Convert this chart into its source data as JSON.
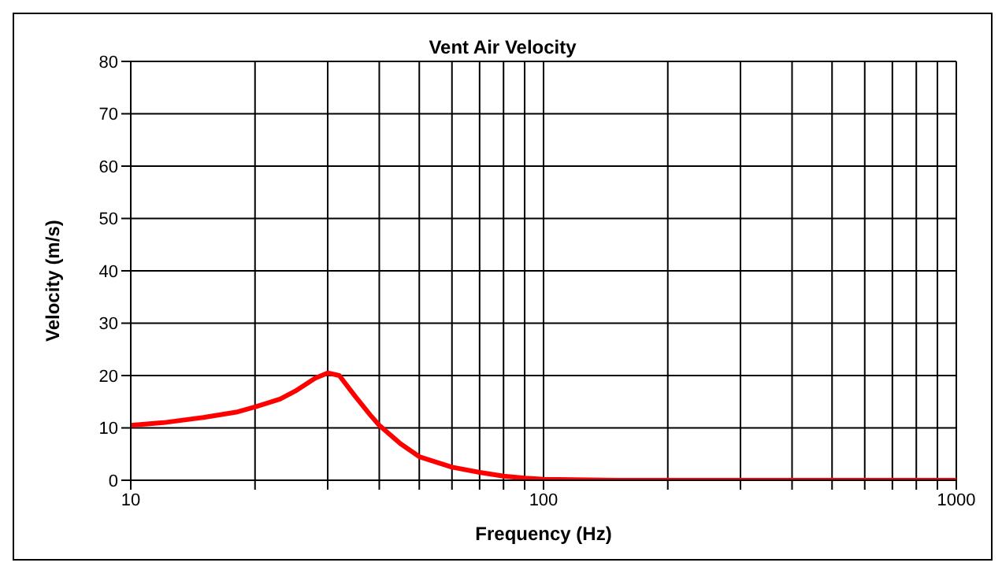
{
  "chart_data": {
    "type": "line",
    "title": "Vent Air Velocity",
    "xlabel": "Frequency (Hz)",
    "ylabel": "Velocity (m/s)",
    "log": "x",
    "x": [
      10,
      12,
      15,
      18,
      20,
      23,
      25,
      28,
      30,
      32,
      35,
      38,
      40,
      45,
      50,
      60,
      70,
      80,
      90,
      100,
      150,
      200,
      500,
      1000
    ],
    "series": [
      {
        "color": "#ff0000",
        "values": [
          10.5,
          11,
          12,
          13,
          14,
          15.5,
          17,
          19.5,
          20.5,
          20,
          16,
          12.5,
          10.5,
          7,
          4.5,
          2.5,
          1.5,
          0.8,
          0.4,
          0.2,
          0,
          0,
          0,
          0
        ]
      }
    ],
    "xlim": [
      10,
      1000
    ],
    "ylim": [
      0,
      80
    ],
    "xticks": [
      10,
      {
        "value": 20,
        "label": null
      },
      {
        "value": 30,
        "label": null
      },
      {
        "value": 40,
        "label": null
      },
      {
        "value": 50,
        "label": null
      },
      {
        "value": 60,
        "label": null
      },
      {
        "value": 70,
        "label": null
      },
      {
        "value": 80,
        "label": null
      },
      {
        "value": 90,
        "label": null
      },
      100,
      {
        "value": 200,
        "label": null
      },
      {
        "value": 300,
        "label": null
      },
      {
        "value": 400,
        "label": null
      },
      {
        "value": 500,
        "label": null
      },
      {
        "value": 600,
        "label": null
      },
      {
        "value": 700,
        "label": null
      },
      {
        "value": 800,
        "label": null
      },
      {
        "value": 900,
        "label": null
      },
      1000
    ],
    "yticks": [
      0,
      10,
      20,
      30,
      40,
      50,
      60,
      70,
      80
    ],
    "grid": true,
    "legend": false,
    "marker": "none",
    "line_style": "solid"
  }
}
